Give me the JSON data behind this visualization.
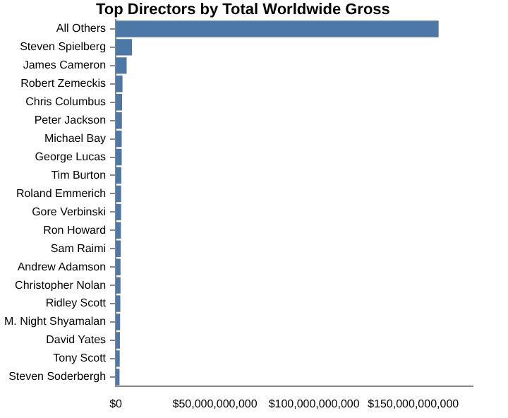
{
  "chart_data": {
    "type": "bar",
    "orientation": "horizontal",
    "title": "Top Directors by Total Worldwide Gross",
    "categories": [
      "All Others",
      "Steven Spielberg",
      "James Cameron",
      "Robert Zemeckis",
      "Chris Columbus",
      "Peter Jackson",
      "Michael Bay",
      "George Lucas",
      "Tim Burton",
      "Roland Emmerich",
      "Gore Verbinski",
      "Ron Howard",
      "Sam Raimi",
      "Andrew Adamson",
      "Christopher Nolan",
      "Ridley Scott",
      "M. Night Shyamalan",
      "David Yates",
      "Tony Scott",
      "Steven Soderbergh"
    ],
    "values": [
      162800000000,
      8200000000,
      5500000000,
      3400000000,
      3200000000,
      3100000000,
      3000000000,
      3000000000,
      2800000000,
      2700000000,
      2700000000,
      2600000000,
      2500000000,
      2400000000,
      2400000000,
      2300000000,
      2200000000,
      2100000000,
      2000000000,
      1900000000
    ],
    "color": "#4c78a8",
    "xlim": [
      0,
      180000000000
    ],
    "xticks": [
      {
        "value": 0,
        "label": "$0"
      },
      {
        "value": 50000000000,
        "label": "$50,000,000,000"
      },
      {
        "value": 100000000000,
        "label": "$100,000,000,000"
      },
      {
        "value": 150000000000,
        "label": "$150,000,000,000"
      }
    ],
    "grid": false,
    "legend": false
  }
}
